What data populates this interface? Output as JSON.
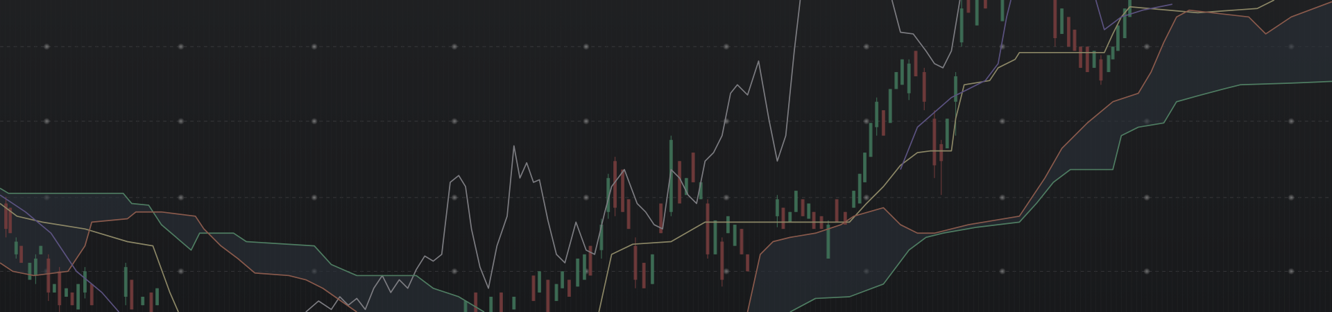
{
  "chart_data": {
    "type": "candlestick",
    "xlim": [
      0,
      1568
    ],
    "ylim": [
      0,
      368
    ],
    "up_color": "#3f7258",
    "down_color": "#743c3c",
    "cloud_color": "#2a3038",
    "x": [
      7,
      12,
      19,
      25,
      35,
      42,
      48,
      57,
      64,
      70,
      78,
      85,
      92,
      100,
      108,
      148,
      155,
      168,
      178,
      185,
      548,
      560,
      578,
      590,
      605,
      628,
      635,
      645,
      655,
      662,
      670,
      680,
      688,
      695,
      708,
      716,
      724,
      733,
      740,
      748,
      758,
      768,
      778,
      790,
      800,
      808,
      816,
      825,
      833,
      842,
      850,
      857,
      865,
      873,
      880,
      915,
      922,
      930,
      937,
      945,
      952,
      958,
      967,
      975,
      985,
      995,
      1005,
      1012,
      1018,
      1025,
      1032,
      1040,
      1048,
      1055,
      1062,
      1070,
      1078,
      1088,
      1100,
      1108,
      1115,
      1125,
      1132,
      1140,
      1150,
      1160,
      1180,
      1242,
      1250,
      1258,
      1265,
      1272,
      1280,
      1288,
      1296,
      1305,
      1310,
      1316,
      1324,
      1330
    ],
    "open": [
      128,
      123,
      68,
      78,
      38,
      43,
      68,
      63,
      23,
      48,
      18,
      23,
      3,
      23,
      33,
      18,
      38,
      8,
      23,
      8,
      0,
      23,
      0,
      23,
      3,
      43,
      23,
      38,
      13,
      28,
      38,
      30,
      38,
      78,
      73,
      118,
      178,
      168,
      133,
      78,
      58,
      33,
      128,
      118,
      178,
      138,
      188,
      133,
      128,
      68,
      83,
      93,
      78,
      98,
      68,
      113,
      123,
      106,
      118,
      133,
      110,
      118,
      113,
      63,
      133,
      118,
      123,
      128,
      153,
      183,
      218,
      238,
      223,
      263,
      268,
      258,
      308,
      283,
      228,
      198,
      193,
      248,
      318,
      368,
      338,
      368,
      343,
      368,
      328,
      348,
      333,
      313,
      313,
      288,
      298,
      283,
      298,
      308,
      323,
      348
    ],
    "high": [
      136,
      123,
      88,
      78,
      58,
      68,
      78,
      68,
      33,
      53,
      28,
      23,
      33,
      53,
      33,
      58,
      38,
      18,
      23,
      28,
      13,
      23,
      18,
      23,
      18,
      43,
      48,
      38,
      33,
      48,
      38,
      63,
      68,
      78,
      110,
      163,
      183,
      168,
      133,
      88,
      58,
      68,
      128,
      208,
      178,
      158,
      188,
      153,
      133,
      108,
      88,
      113,
      103,
      98,
      68,
      138,
      123,
      118,
      143,
      133,
      128,
      118,
      113,
      108,
      133,
      118,
      143,
      163,
      188,
      223,
      253,
      238,
      263,
      283,
      298,
      298,
      308,
      288,
      238,
      203,
      228,
      283,
      368,
      368,
      368,
      368,
      368,
      368,
      358,
      348,
      333,
      313,
      313,
      308,
      303,
      303,
      313,
      338,
      358,
      368
    ],
    "low": [
      88,
      93,
      63,
      58,
      38,
      33,
      68,
      13,
      23,
      0,
      18,
      8,
      3,
      16,
      8,
      8,
      3,
      8,
      0,
      8,
      0,
      0,
      0,
      0,
      3,
      13,
      23,
      0,
      13,
      28,
      18,
      30,
      38,
      43,
      63,
      110,
      113,
      118,
      98,
      28,
      28,
      33,
      93,
      113,
      128,
      138,
      153,
      133,
      63,
      68,
      30,
      93,
      78,
      68,
      48,
      100,
      98,
      106,
      118,
      113,
      110,
      98,
      98,
      63,
      106,
      103,
      123,
      128,
      153,
      183,
      208,
      208,
      223,
      263,
      268,
      250,
      278,
      238,
      158,
      138,
      193,
      208,
      313,
      353,
      338,
      358,
      343,
      313,
      328,
      313,
      308,
      288,
      283,
      288,
      268,
      283,
      298,
      308,
      323,
      348
    ],
    "close": [
      98,
      93,
      83,
      58,
      58,
      63,
      78,
      23,
      33,
      8,
      28,
      8,
      33,
      48,
      8,
      53,
      3,
      18,
      0,
      28,
      13,
      0,
      18,
      0,
      18,
      13,
      48,
      0,
      33,
      48,
      18,
      63,
      68,
      43,
      103,
      158,
      123,
      118,
      98,
      38,
      28,
      68,
      93,
      203,
      128,
      158,
      153,
      153,
      68,
      108,
      38,
      113,
      103,
      68,
      48,
      133,
      98,
      118,
      143,
      113,
      128,
      98,
      98,
      103,
      106,
      103,
      143,
      163,
      188,
      223,
      248,
      208,
      263,
      283,
      298,
      293,
      278,
      248,
      173,
      178,
      228,
      278,
      358,
      353,
      368,
      358,
      368,
      323,
      358,
      313,
      308,
      288,
      283,
      308,
      273,
      303,
      313,
      338,
      358,
      368
    ],
    "series": [
      {
        "color": "#7c7c81",
        "x": [
          360,
          375,
          390,
          400,
          410,
          420,
          430,
          440,
          450,
          460,
          470,
          480,
          490,
          500,
          510,
          520,
          530,
          540,
          548,
          555,
          565,
          575,
          585,
          597,
          605,
          612,
          620,
          628,
          635,
          645,
          655,
          665,
          678,
          690,
          700,
          712,
          720,
          735,
          750,
          760,
          770,
          780,
          790,
          800,
          810,
          820,
          830,
          840,
          850,
          860,
          868,
          880,
          893,
          905,
          915,
          925,
          935,
          942,
          1000,
          1050,
          1060,
          1075,
          1090,
          1100,
          1110,
          1120,
          1130
        ],
        "values": [
          0,
          13,
          3,
          18,
          8,
          16,
          3,
          28,
          43,
          23,
          38,
          28,
          50,
          66,
          60,
          68,
          153,
          161,
          148,
          98,
          53,
          28,
          78,
          113,
          196,
          158,
          176,
          153,
          156,
          108,
          68,
          58,
          106,
          73,
          68,
          118,
          148,
          168,
          128,
          118,
          103,
          98,
          168,
          158,
          138,
          128,
          178,
          188,
          208,
          258,
          268,
          256,
          296,
          228,
          178,
          208,
          308,
          368,
          null,
          368,
          330,
          328,
          308,
          293,
          288,
          308,
          368
        ]
      },
      {
        "color": "#8c8766",
        "x": [
          0,
          20,
          50,
          100,
          150,
          180,
          200,
          210,
          450,
          705,
          720,
          745,
          790,
          830,
          910,
          1000,
          1020,
          1040,
          1060,
          1080,
          1095,
          1120,
          1125,
          1135,
          1165,
          1175,
          1195,
          1200,
          1300,
          1310,
          1320,
          1330,
          1410,
          1480,
          1500
        ],
        "values": [
          128,
          113,
          106,
          98,
          83,
          78,
          23,
          0,
          null,
          0,
          68,
          80,
          83,
          106,
          106,
          106,
          128,
          148,
          173,
          188,
          190,
          190,
          228,
          268,
          273,
          288,
          298,
          306,
          306,
          328,
          348,
          360,
          353,
          358,
          368
        ]
      },
      {
        "color": "#4f7d62",
        "x": [
          0,
          10,
          145,
          155,
          175,
          190,
          225,
          235,
          275,
          290,
          370,
          390,
          420,
          490,
          510,
          540,
          570,
          750,
          930,
          960,
          1000,
          1040,
          1070,
          1090,
          1110,
          1150,
          1200,
          1220,
          1240,
          1260,
          1310,
          1320,
          1340,
          1370,
          1385,
          1410,
          1440,
          1460,
          1520,
          1568
        ],
        "values": [
          146,
          140,
          140,
          128,
          126,
          103,
          73,
          93,
          93,
          83,
          78,
          56,
          43,
          43,
          28,
          18,
          0,
          null,
          0,
          16,
          18,
          33,
          73,
          88,
          93,
          100,
          106,
          128,
          153,
          168,
          168,
          208,
          218,
          223,
          248,
          255,
          263,
          268,
          270,
          272
        ]
      },
      {
        "color": "#8a5a4c",
        "x": [
          0,
          15,
          40,
          80,
          100,
          108,
          150,
          160,
          190,
          230,
          240,
          260,
          280,
          300,
          340,
          360,
          380,
          420,
          650,
          880,
          895,
          910,
          930,
          960,
          990,
          1005,
          1040,
          1060,
          1080,
          1100,
          1140,
          1170,
          1200,
          1230,
          1250,
          1280,
          1310,
          1340,
          1355,
          1370,
          1385,
          1400,
          1470,
          1490,
          1520,
          1568
        ],
        "values": [
          58,
          48,
          43,
          48,
          78,
          106,
          110,
          118,
          118,
          113,
          98,
          78,
          63,
          46,
          43,
          38,
          28,
          0,
          null,
          0,
          68,
          83,
          88,
          93,
          103,
          113,
          123,
          103,
          93,
          93,
          103,
          108,
          113,
          158,
          193,
          223,
          248,
          258,
          283,
          318,
          348,
          356,
          348,
          328,
          348,
          366
        ]
      },
      {
        "color": "#5b5280",
        "x": [
          0,
          30,
          60,
          90,
          120,
          140,
          600,
          1060,
          1080,
          1120,
          1160,
          1175,
          1185,
          1190,
          1240,
          1290,
          1300,
          1320,
          1345,
          1380
        ],
        "values": [
          138,
          118,
          93,
          48,
          23,
          0,
          null,
          168,
          218,
          253,
          273,
          293,
          348,
          368,
          null,
          368,
          333,
          348,
          356,
          363
        ]
      }
    ]
  }
}
